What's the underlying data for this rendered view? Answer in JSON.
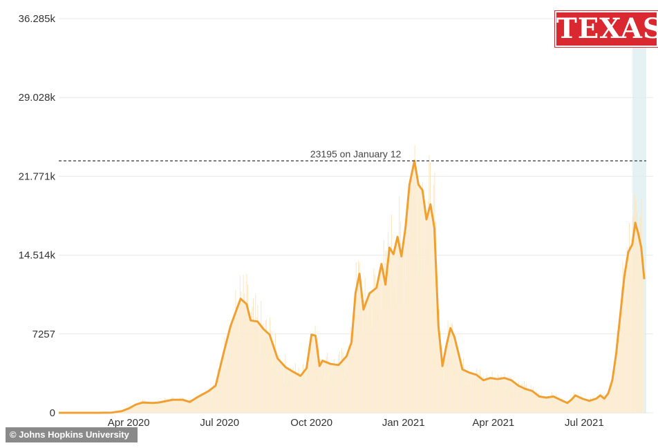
{
  "badge": {
    "text": "TEXAS",
    "color": "#d9282f"
  },
  "credit": "© Johns Hopkins University",
  "chart_data": {
    "type": "line",
    "title": "",
    "xlabel": "",
    "ylabel": "",
    "ylim": [
      0,
      36285
    ],
    "xlim": [
      "2020-01-22",
      "2021-09-01"
    ],
    "grid": true,
    "ytick_labels": [
      "0",
      "7257",
      "14.514k",
      "21.771k",
      "29.028k",
      "36.285k"
    ],
    "ytick_values": [
      0,
      7257,
      14514,
      21771,
      29028,
      36285
    ],
    "xtick_labels": [
      "Apr 2020",
      "Jul 2020",
      "Oct 2020",
      "Jan 2021",
      "Apr 2021",
      "Jul 2021"
    ],
    "xtick_dates": [
      "2020-04-01",
      "2020-07-01",
      "2020-10-01",
      "2021-01-01",
      "2021-04-01",
      "2021-07-01"
    ],
    "peak": {
      "value": 23195,
      "date": "2021-01-12",
      "label": "23195 on January 12"
    },
    "colors": {
      "line": "#f0a030",
      "fill": "#fcecd2",
      "bars": "#fbe6c3",
      "highlight": "#e4f2f3"
    },
    "series": [
      {
        "x": [
          "2020-01-22",
          "2020-03-01",
          "2020-03-15",
          "2020-03-25",
          "2020-04-01",
          "2020-04-08",
          "2020-04-15",
          "2020-04-25",
          "2020-05-01",
          "2020-05-15",
          "2020-05-25",
          "2020-06-01",
          "2020-06-10",
          "2020-06-20",
          "2020-06-27",
          "2020-07-05",
          "2020-07-12",
          "2020-07-18",
          "2020-07-22",
          "2020-07-28",
          "2020-08-01",
          "2020-08-08",
          "2020-08-14",
          "2020-08-20",
          "2020-08-28",
          "2020-09-05",
          "2020-09-12",
          "2020-09-20",
          "2020-09-26",
          "2020-10-01",
          "2020-10-05",
          "2020-10-09",
          "2020-10-12",
          "2020-10-20",
          "2020-10-28",
          "2020-11-05",
          "2020-11-10",
          "2020-11-14",
          "2020-11-18",
          "2020-11-22",
          "2020-11-28",
          "2020-12-05",
          "2020-12-10",
          "2020-12-14",
          "2020-12-18",
          "2020-12-22",
          "2020-12-26",
          "2020-12-30",
          "2021-01-03",
          "2021-01-07",
          "2021-01-12",
          "2021-01-16",
          "2021-01-20",
          "2021-01-24",
          "2021-01-28",
          "2021-02-01",
          "2021-02-05",
          "2021-02-09",
          "2021-02-13",
          "2021-02-17",
          "2021-02-21",
          "2021-02-25",
          "2021-03-01",
          "2021-03-08",
          "2021-03-15",
          "2021-03-22",
          "2021-03-29",
          "2021-04-05",
          "2021-04-12",
          "2021-04-19",
          "2021-04-26",
          "2021-05-03",
          "2021-05-10",
          "2021-05-17",
          "2021-05-24",
          "2021-05-31",
          "2021-06-07",
          "2021-06-14",
          "2021-06-18",
          "2021-06-22",
          "2021-06-29",
          "2021-07-06",
          "2021-07-13",
          "2021-07-17",
          "2021-07-21",
          "2021-07-25",
          "2021-07-29",
          "2021-08-02",
          "2021-08-06",
          "2021-08-10",
          "2021-08-14",
          "2021-08-18",
          "2021-08-21",
          "2021-08-24",
          "2021-08-27",
          "2021-08-30"
        ],
        "y": [
          0,
          0,
          20,
          150,
          400,
          750,
          950,
          900,
          950,
          1200,
          1200,
          1000,
          1500,
          2000,
          2500,
          5500,
          8000,
          9500,
          10500,
          10000,
          8500,
          8400,
          7700,
          7200,
          5000,
          4200,
          3800,
          3400,
          4100,
          7200,
          7100,
          4300,
          4800,
          4500,
          4400,
          5200,
          6500,
          11000,
          12800,
          9500,
          11000,
          11500,
          13700,
          11800,
          15200,
          14600,
          16200,
          14400,
          17000,
          21000,
          23195,
          21000,
          20500,
          17800,
          19200,
          17000,
          8000,
          4300,
          6200,
          7800,
          7000,
          5500,
          4000,
          3700,
          3500,
          3000,
          3200,
          3100,
          3200,
          3000,
          2500,
          2200,
          2000,
          1500,
          1400,
          1500,
          1200,
          900,
          1200,
          1600,
          1300,
          1100,
          1300,
          1600,
          1300,
          1800,
          3000,
          5500,
          9000,
          12500,
          14800,
          15500,
          17500,
          16500,
          15200,
          12300
        ]
      }
    ]
  }
}
